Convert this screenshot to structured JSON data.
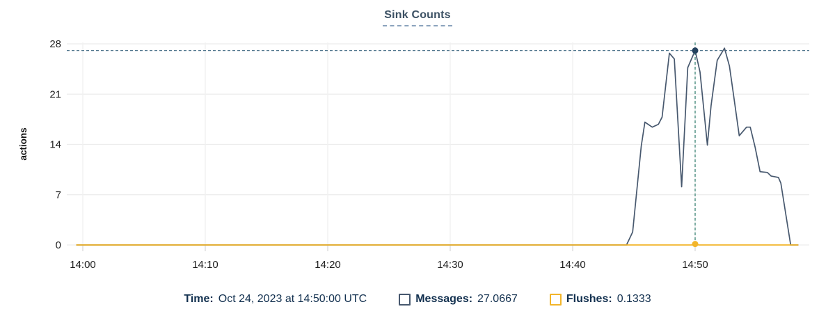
{
  "title": {
    "text": "Sink Counts",
    "color": "#3b5063",
    "underline_color": "#8ba3bd"
  },
  "tooltip": {
    "time_label": "Time:",
    "time_value": "Oct 24, 2023 at 14:50:00 UTC",
    "messages_label": "Messages:",
    "messages_value": "27.0667",
    "flushes_label": "Flushes:",
    "flushes_value": "0.1333",
    "text_color": "#12304f"
  },
  "chart_data": {
    "type": "line",
    "title": "Sink Counts",
    "xlabel": "",
    "ylabel": "actions",
    "ylim": [
      0,
      28
    ],
    "y_ticks": [
      0,
      7,
      14,
      21,
      28
    ],
    "x_ticks": [
      {
        "t": 0,
        "label": "14:00"
      },
      {
        "t": 10,
        "label": "14:10"
      },
      {
        "t": 20,
        "label": "14:20"
      },
      {
        "t": 30,
        "label": "14:30"
      },
      {
        "t": 40,
        "label": "14:40"
      },
      {
        "t": 50,
        "label": "14:50"
      }
    ],
    "grid": true,
    "legend_position": "bottom",
    "series": [
      {
        "name": "Messages",
        "color": "#47586e",
        "points": [
          [
            -0.5,
            0
          ],
          [
            10,
            0
          ],
          [
            20,
            0
          ],
          [
            30,
            0
          ],
          [
            40,
            0
          ],
          [
            44.4,
            0
          ],
          [
            44.9,
            1.8
          ],
          [
            45.6,
            13.8
          ],
          [
            45.9,
            17.1
          ],
          [
            46.5,
            16.4
          ],
          [
            47.0,
            16.8
          ],
          [
            47.3,
            17.8
          ],
          [
            47.9,
            26.7
          ],
          [
            48.3,
            25.9
          ],
          [
            48.9,
            8.1
          ],
          [
            49.4,
            24.7
          ],
          [
            50.0,
            27.0667
          ],
          [
            50.4,
            24.1
          ],
          [
            51.0,
            13.9
          ],
          [
            51.3,
            19.4
          ],
          [
            51.8,
            25.7
          ],
          [
            52.4,
            27.4
          ],
          [
            52.8,
            24.9
          ],
          [
            53.1,
            21.3
          ],
          [
            53.6,
            15.2
          ],
          [
            54.2,
            16.4
          ],
          [
            54.5,
            16.4
          ],
          [
            54.9,
            13.6
          ],
          [
            55.3,
            10.2
          ],
          [
            55.9,
            10.1
          ],
          [
            56.2,
            9.6
          ],
          [
            56.8,
            9.4
          ],
          [
            57.0,
            8.6
          ],
          [
            57.8,
            0
          ],
          [
            58.4,
            0
          ]
        ]
      },
      {
        "name": "Flushes",
        "color": "#f2b52a",
        "points": [
          [
            -0.5,
            0
          ],
          [
            10,
            0
          ],
          [
            20,
            0
          ],
          [
            30,
            0
          ],
          [
            40,
            0
          ],
          [
            49.7,
            0
          ],
          [
            50,
            0.1333
          ],
          [
            50.3,
            0
          ],
          [
            58.4,
            0
          ]
        ]
      }
    ],
    "crosshair": {
      "t": 50,
      "messages_value": 27.0667,
      "flushes_value": 0.1333,
      "h_line_color": "#53788f",
      "v_line_color": "#3d8577",
      "messages_dot_color": "#24425e",
      "flushes_dot_color": "#f2b52a"
    },
    "grid_color": "#ececec",
    "axis_text_color": "#1f1f1f"
  }
}
